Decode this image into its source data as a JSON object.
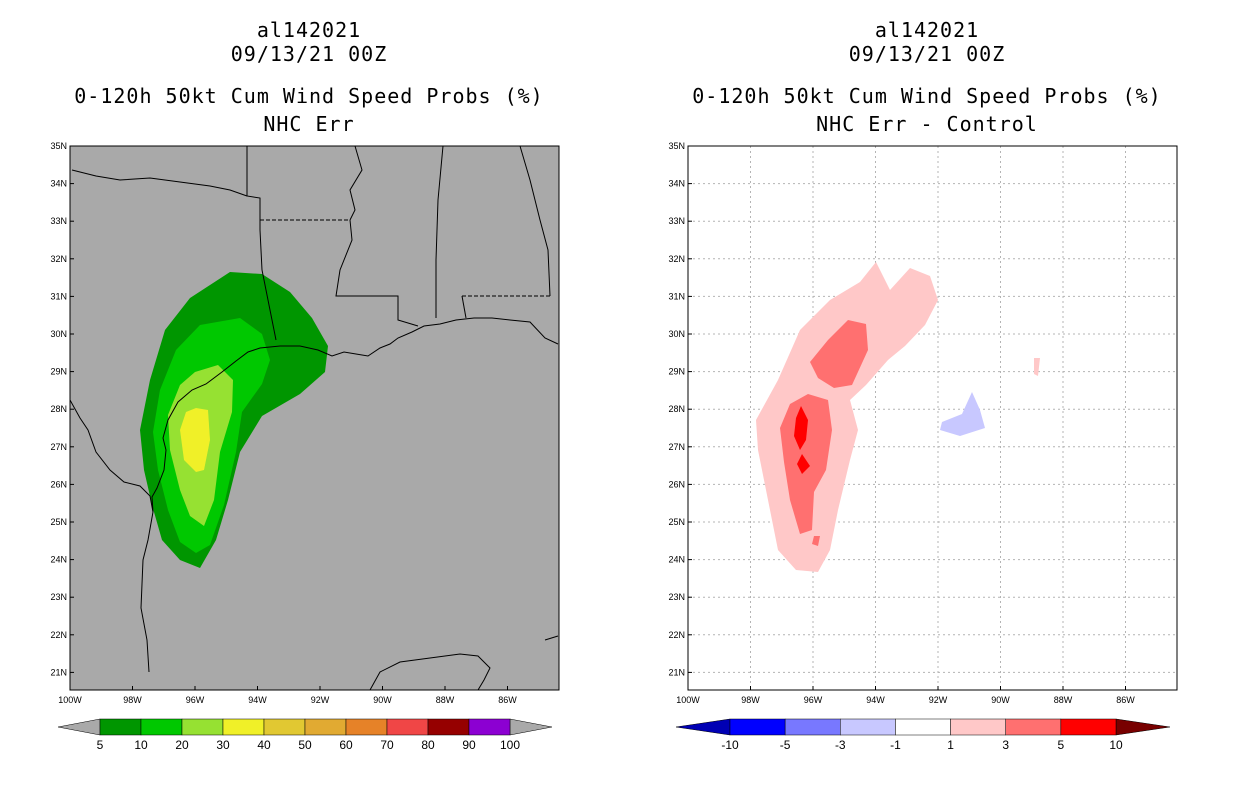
{
  "left_panel": {
    "storm_id": "al142021",
    "datetime": "09/13/21 00Z",
    "title": "0-120h 50kt Cum Wind Speed Probs (%)",
    "subtitle": "NHC Err",
    "background_color": "#a9a9a9",
    "colorbar": {
      "colors": [
        "#009600",
        "#00c800",
        "#96e132",
        "#f0f028",
        "#e1c832",
        "#e1aa32",
        "#e68228",
        "#f04646",
        "#960000",
        "#8c00d2"
      ],
      "labels": [
        "5",
        "10",
        "20",
        "30",
        "40",
        "50",
        "60",
        "70",
        "80",
        "90",
        "100"
      ]
    }
  },
  "right_panel": {
    "storm_id": "al142021",
    "datetime": "09/13/21 00Z",
    "title": "0-120h 50kt Cum Wind Speed Probs (%)",
    "subtitle": "NHC Err - Control",
    "background_color": "#ffffff",
    "colorbar": {
      "colors": [
        "#0000b4",
        "#0000ff",
        "#7878ff",
        "#c8c8ff",
        "#ffffff",
        "#ffc8c8",
        "#ff7070",
        "#ff0000",
        "#780000"
      ],
      "labels": [
        "-10",
        "-5",
        "-3",
        "-1",
        "1",
        "3",
        "5",
        "10"
      ]
    }
  },
  "map": {
    "lat_labels": [
      "35N",
      "34N",
      "33N",
      "32N",
      "31N",
      "30N",
      "29N",
      "28N",
      "27N",
      "26N",
      "25N",
      "24N",
      "23N",
      "22N",
      "21N"
    ],
    "lon_labels": [
      "100W",
      "98W",
      "96W",
      "94W",
      "92W",
      "90W",
      "88W",
      "86W"
    ]
  },
  "chart_data": [
    {
      "type": "heatmap",
      "title": "0-120h 50kt Cum Wind Speed Probs (%)",
      "subtitle": "NHC Err",
      "variable": "50kt cumulative wind speed probability (%)",
      "levels": [
        5,
        10,
        20,
        30,
        40,
        50,
        60,
        70,
        80,
        90,
        100
      ],
      "lat_range": [
        20.6,
        35
      ],
      "lon_range": [
        -100,
        -84.6
      ],
      "max_value_range": [
        30,
        40
      ],
      "max_location": {
        "lat": 27.2,
        "lon": -96.1
      }
    },
    {
      "type": "heatmap",
      "title": "0-120h 50kt Cum Wind Speed Probs (%)",
      "subtitle": "NHC Err - Control",
      "variable": "probability difference (%)",
      "levels": [
        -10,
        -5,
        -3,
        -1,
        1,
        3,
        5,
        10
      ],
      "lat_range": [
        20.6,
        35
      ],
      "lon_range": [
        -100,
        -84.6
      ],
      "max_value_range": [
        5,
        10
      ],
      "min_value_range": [
        -3,
        -1
      ]
    }
  ]
}
